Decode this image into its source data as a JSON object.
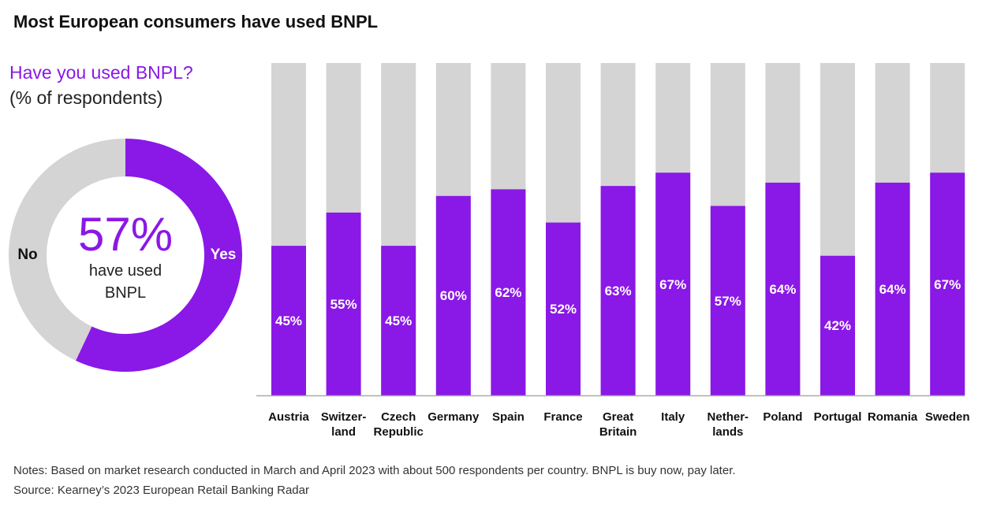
{
  "title": "Most European consumers have used BNPL",
  "chart_data": [
    {
      "type": "pie",
      "title": "Have you used BNPL?",
      "subtitle": "(% of respondents)",
      "categories": [
        "Yes",
        "No"
      ],
      "values": [
        57,
        43
      ],
      "colors": [
        "#8a18e6",
        "#d4d4d4"
      ],
      "center_label": "57%",
      "center_text": "have used\nBNPL"
    },
    {
      "type": "bar",
      "categories": [
        "Austria",
        "Switzer-\nland",
        "Czech\nRepublic",
        "Germany",
        "Spain",
        "France",
        "Great\nBritain",
        "Italy",
        "Nether-\nlands",
        "Poland",
        "Portugal",
        "Romania",
        "Sweden"
      ],
      "values": [
        45,
        55,
        45,
        60,
        62,
        52,
        63,
        67,
        57,
        64,
        42,
        64,
        67
      ],
      "value_labels": [
        "45%",
        "55%",
        "45%",
        "60%",
        "62%",
        "52%",
        "63%",
        "67%",
        "57%",
        "64%",
        "42%",
        "64%",
        "67%"
      ],
      "color": "#8a18e6",
      "background_color": "#d4d4d4",
      "ylim": [
        0,
        100
      ]
    }
  ],
  "notes": "Notes: Based on market research conducted in March and April 2023 with about 500 respondents per country. BNPL is buy now, pay later.",
  "source": "Source: Kearney’s 2023 European Retail Banking Radar"
}
